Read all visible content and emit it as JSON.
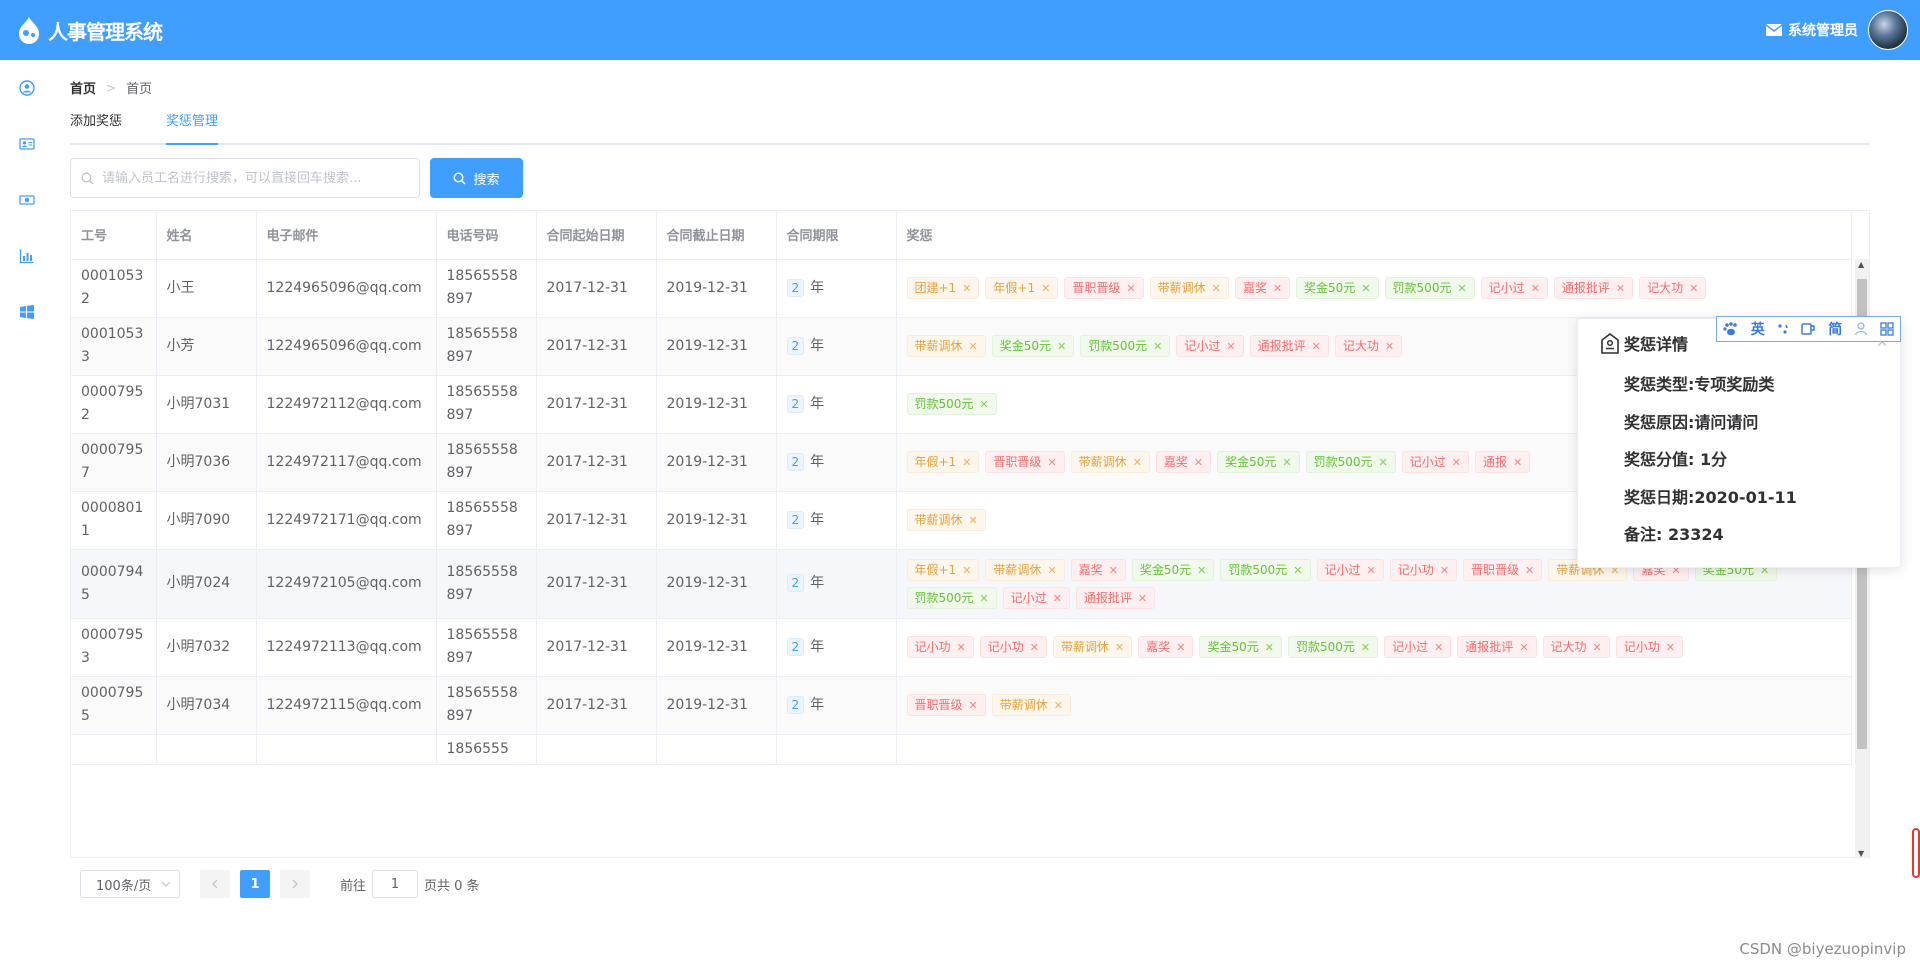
{
  "header": {
    "app_title": "人事管理系统",
    "admin_name": "系统管理员"
  },
  "sidebar": {
    "items": [
      {
        "icon": "user-icon"
      },
      {
        "icon": "id-card-icon"
      },
      {
        "icon": "money-icon"
      },
      {
        "icon": "chart-icon"
      },
      {
        "icon": "windows-icon"
      }
    ]
  },
  "breadcrumb": {
    "home": "首页",
    "separator": ">",
    "current": "首页"
  },
  "tabs": [
    {
      "label": "添加奖惩",
      "active": false
    },
    {
      "label": "奖惩管理",
      "active": true
    }
  ],
  "search": {
    "placeholder": "请输入员工名进行搜索，可以直接回车搜索...",
    "button_label": "搜索"
  },
  "table": {
    "columns": [
      "工号",
      "姓名",
      "电子邮件",
      "电话号码",
      "合同起始日期",
      "合同截止日期",
      "合同期限",
      "奖惩"
    ],
    "period_unit": "年",
    "rows": [
      {
        "id": "00010532",
        "name": "小王",
        "email": "1224965096@qq.com",
        "phone": "18565558897",
        "start": "2017-12-31",
        "end": "2019-12-31",
        "period": "2",
        "tags": [
          [
            "团建+1",
            "warning"
          ],
          [
            "年假+1",
            "warning"
          ],
          [
            "晋职晋级",
            "danger"
          ],
          [
            "带薪调休",
            "warning"
          ],
          [
            "嘉奖",
            "danger"
          ],
          [
            "奖金50元",
            "success"
          ],
          [
            "罚款500元",
            "success"
          ],
          [
            "记小过",
            "danger"
          ],
          [
            "通报批评",
            "danger"
          ],
          [
            "记大功",
            "danger"
          ]
        ]
      },
      {
        "id": "00010533",
        "name": "小芳",
        "email": "1224965096@qq.com",
        "phone": "18565558897",
        "start": "2017-12-31",
        "end": "2019-12-31",
        "period": "2",
        "tags": [
          [
            "带薪调休",
            "warning"
          ],
          [
            "奖金50元",
            "success"
          ],
          [
            "罚款500元",
            "success"
          ],
          [
            "记小过",
            "danger"
          ],
          [
            "通报批评",
            "danger"
          ],
          [
            "记大功",
            "danger"
          ]
        ]
      },
      {
        "id": "00007952",
        "name": "小明7031",
        "email": "1224972112@qq.com",
        "phone": "18565558897",
        "start": "2017-12-31",
        "end": "2019-12-31",
        "period": "2",
        "tags": [
          [
            "罚款500元",
            "success"
          ]
        ]
      },
      {
        "id": "00007957",
        "name": "小明7036",
        "email": "1224972117@qq.com",
        "phone": "18565558897",
        "start": "2017-12-31",
        "end": "2019-12-31",
        "period": "2",
        "tags": [
          [
            "年假+1",
            "warning"
          ],
          [
            "晋职晋级",
            "danger"
          ],
          [
            "带薪调休",
            "warning"
          ],
          [
            "嘉奖",
            "danger"
          ],
          [
            "奖金50元",
            "success"
          ],
          [
            "罚款500元",
            "success"
          ],
          [
            "记小过",
            "danger"
          ],
          [
            "通报",
            "danger"
          ]
        ]
      },
      {
        "id": "00008011",
        "name": "小明7090",
        "email": "1224972171@qq.com",
        "phone": "18565558897",
        "start": "2017-12-31",
        "end": "2019-12-31",
        "period": "2",
        "tags": [
          [
            "带薪调休",
            "warning"
          ]
        ]
      },
      {
        "id": "00007945",
        "name": "小明7024",
        "email": "1224972105@qq.com",
        "phone": "18565558897",
        "start": "2017-12-31",
        "end": "2019-12-31",
        "period": "2",
        "tags": [
          [
            "年假+1",
            "warning"
          ],
          [
            "带薪调休",
            "warning"
          ],
          [
            "嘉奖",
            "danger"
          ],
          [
            "奖金50元",
            "success"
          ],
          [
            "罚款500元",
            "success"
          ],
          [
            "记小过",
            "danger"
          ],
          [
            "记小功",
            "danger"
          ],
          [
            "晋职晋级",
            "danger"
          ],
          [
            "带薪调休",
            "warning"
          ],
          [
            "嘉奖",
            "danger"
          ],
          [
            "奖金50元",
            "success"
          ],
          [
            "罚款500元",
            "success"
          ],
          [
            "记小过",
            "danger"
          ],
          [
            "通报批评",
            "danger"
          ]
        ]
      },
      {
        "id": "00007953",
        "name": "小明7032",
        "email": "1224972113@qq.com",
        "phone": "18565558897",
        "start": "2017-12-31",
        "end": "2019-12-31",
        "period": "2",
        "tags": [
          [
            "记小功",
            "danger"
          ],
          [
            "记小功",
            "danger"
          ],
          [
            "带薪调休",
            "warning"
          ],
          [
            "嘉奖",
            "danger"
          ],
          [
            "奖金50元",
            "success"
          ],
          [
            "罚款500元",
            "success"
          ],
          [
            "记小过",
            "danger"
          ],
          [
            "通报批评",
            "danger"
          ],
          [
            "记大功",
            "danger"
          ],
          [
            "记小功",
            "danger"
          ]
        ]
      },
      {
        "id": "00007955",
        "name": "小明7034",
        "email": "1224972115@qq.com",
        "phone": "18565558897",
        "start": "2017-12-31",
        "end": "2019-12-31",
        "period": "2",
        "tags": [
          [
            "晋职晋级",
            "danger"
          ],
          [
            "带薪调休",
            "warning"
          ]
        ]
      },
      {
        "id": "",
        "name": "",
        "email": "",
        "phone": "1856555",
        "start": "",
        "end": "",
        "period": "",
        "tags": []
      }
    ]
  },
  "pagination": {
    "page_size": "100条/页",
    "current_page": "1",
    "goto_label": "前往",
    "goto_value": "1",
    "total_label": "页共 0 条"
  },
  "popover": {
    "title": "奖惩详情",
    "type_line": "奖惩类型:专项奖励类",
    "reason_line": "奖惩原因:请问请问",
    "score_line": "奖惩分值: 1分",
    "date_line": "奖惩日期:2020-01-11",
    "remark_line": "备注: 23324"
  },
  "ime_toolbar": {
    "items": [
      "英",
      "简"
    ]
  },
  "watermark": "CSDN @biyezuopinvip",
  "colors": {
    "primary": "#409eff",
    "warning": "#e6a23c",
    "danger": "#f56c6c",
    "success": "#67c23a"
  }
}
